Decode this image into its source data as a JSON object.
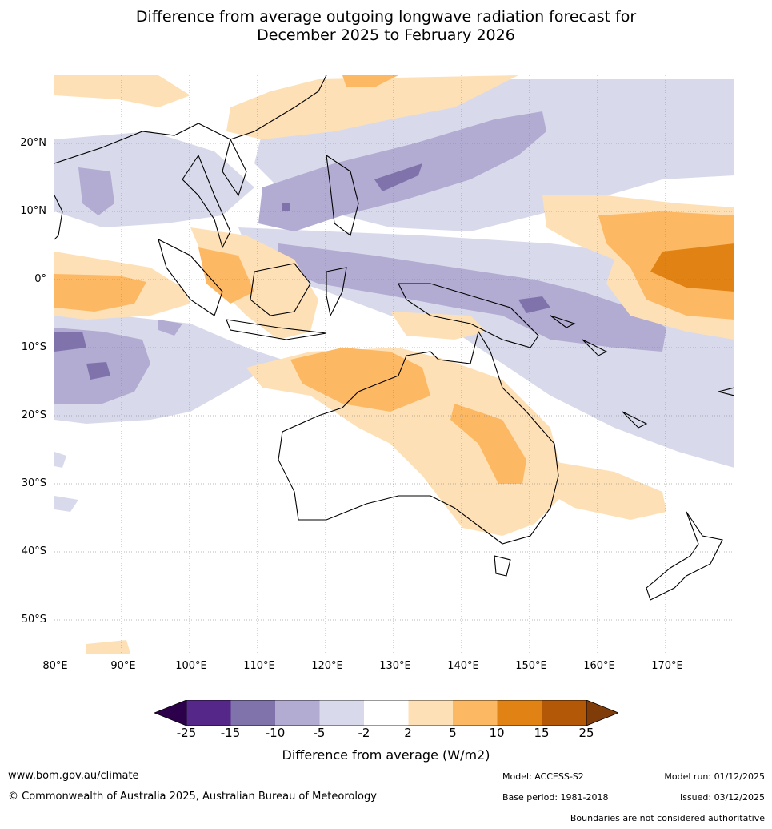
{
  "title_line1": "Difference from average outgoing longwave radiation forecast for",
  "title_line2": "December 2025 to February 2026",
  "lat_labels": [
    "20°N",
    "10°N",
    "0°",
    "10°S",
    "20°S",
    "30°S",
    "40°S",
    "50°S"
  ],
  "lon_labels": [
    "80°E",
    "90°E",
    "100°E",
    "110°E",
    "120°E",
    "130°E",
    "140°E",
    "150°E",
    "160°E",
    "170°E"
  ],
  "colorbar": {
    "ticks": [
      "-25",
      "-15",
      "-10",
      "-5",
      "-2",
      "2",
      "5",
      "10",
      "15",
      "25"
    ],
    "colors": [
      "#2d004b",
      "#542788",
      "#8073ac",
      "#b2abd2",
      "#d8daeb",
      "#ffffff",
      "#fee0b6",
      "#fdb863",
      "#e08214",
      "#b35806",
      "#7f3b08"
    ],
    "label": "Difference from average (W/m2)"
  },
  "footer": {
    "website": "www.bom.gov.au/climate",
    "copyright": "© Commonwealth of Australia 2025, Australian Bureau of Meteorology",
    "model": "Model: ACCESS-S2",
    "base_period": "Base period: 1981-2018",
    "model_run": "Model run: 01/12/2025",
    "issued": "Issued: 03/12/2025",
    "disclaimer": "Boundaries are not considered authoritative"
  }
}
